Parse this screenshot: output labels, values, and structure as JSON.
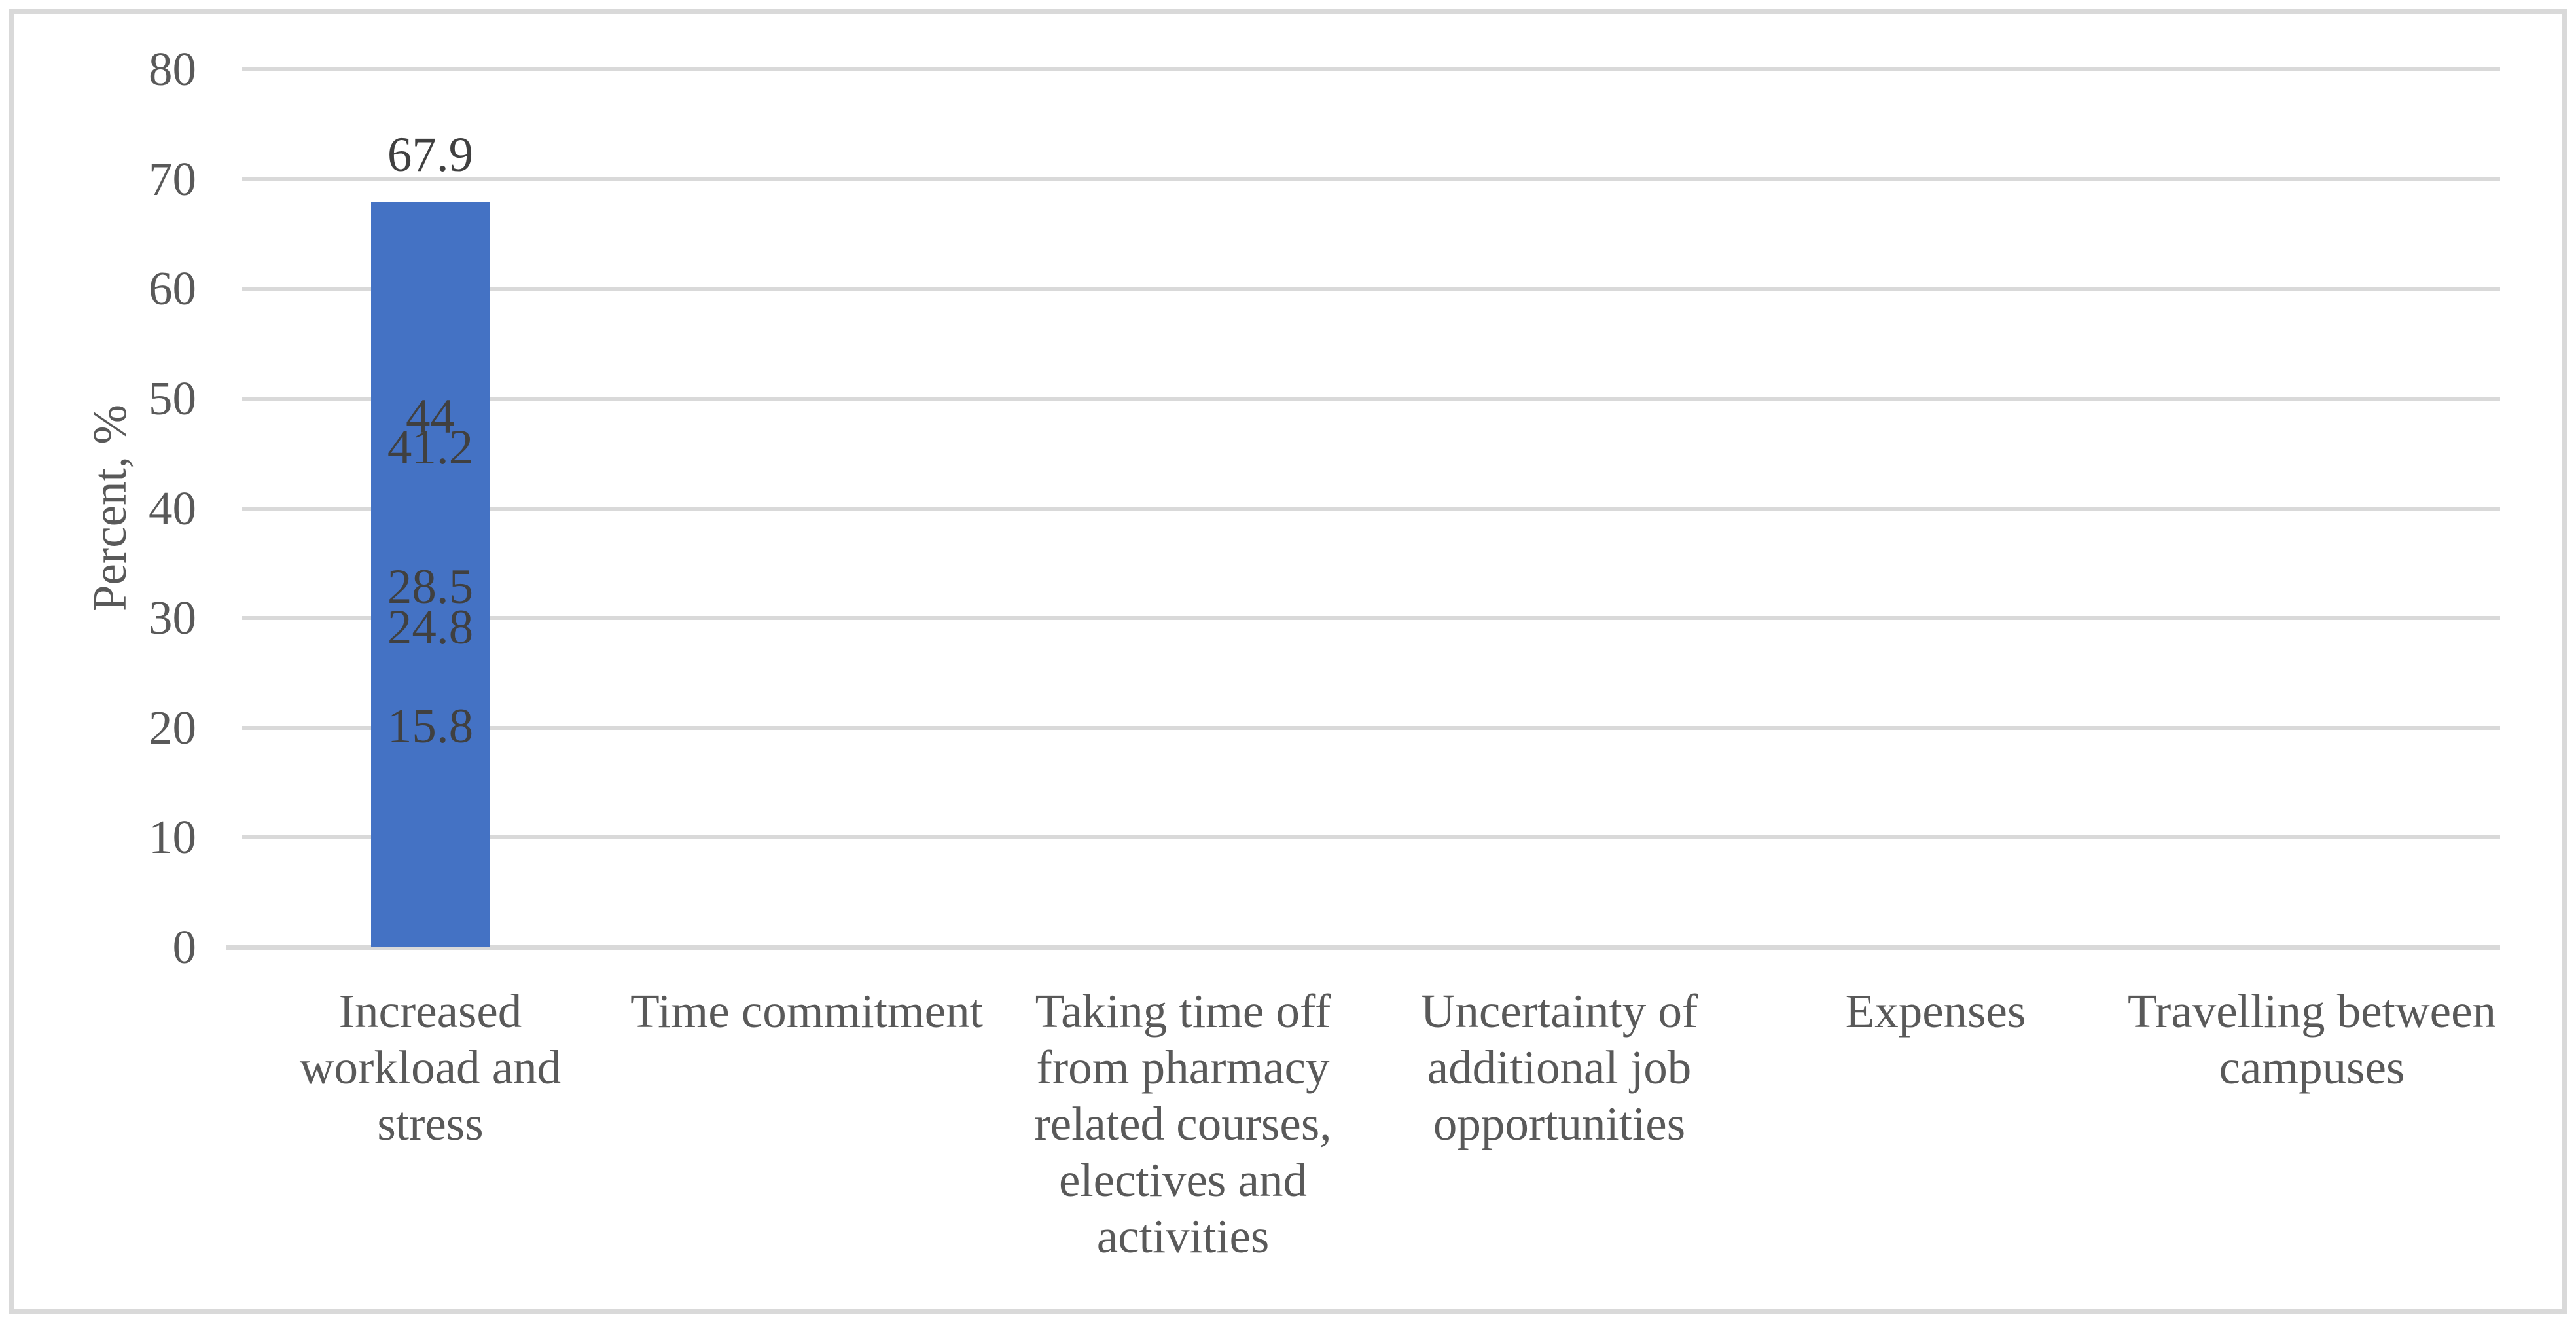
{
  "chart_data": {
    "type": "bar",
    "title": "",
    "xlabel": "",
    "ylabel": "Percent, %",
    "ylim": [
      0,
      80
    ],
    "y_ticks": [
      0,
      10,
      20,
      30,
      40,
      50,
      60,
      70,
      80
    ],
    "grid": true,
    "legend_position": "none",
    "categories": [
      "Increased workload and stress",
      "Time commitment",
      "Taking time off from pharmacy related courses, electives and activities",
      "Uncertainty of additional job opportunities",
      "Expenses",
      "Travelling between campuses"
    ],
    "category_lines": [
      [
        "Increased",
        "workload and",
        "stress"
      ],
      [
        "Time commitment"
      ],
      [
        "Taking time off",
        "from pharmacy",
        "related courses,",
        "electives and",
        "activities"
      ],
      [
        "Uncertainty of",
        "additional job",
        "opportunities"
      ],
      [
        "Expenses"
      ],
      [
        "Travelling between",
        "campuses"
      ]
    ],
    "values": [
      67.9,
      44,
      41.2,
      28.5,
      24.8,
      15.8
    ],
    "value_labels": [
      "67.9",
      "44",
      "41.2",
      "28.5",
      "24.8",
      "15.8"
    ],
    "bar_color": "#4472C4",
    "gridline_color": "#D9D9D9",
    "axis_text_color": "#595959",
    "value_label_color": "#404040"
  }
}
